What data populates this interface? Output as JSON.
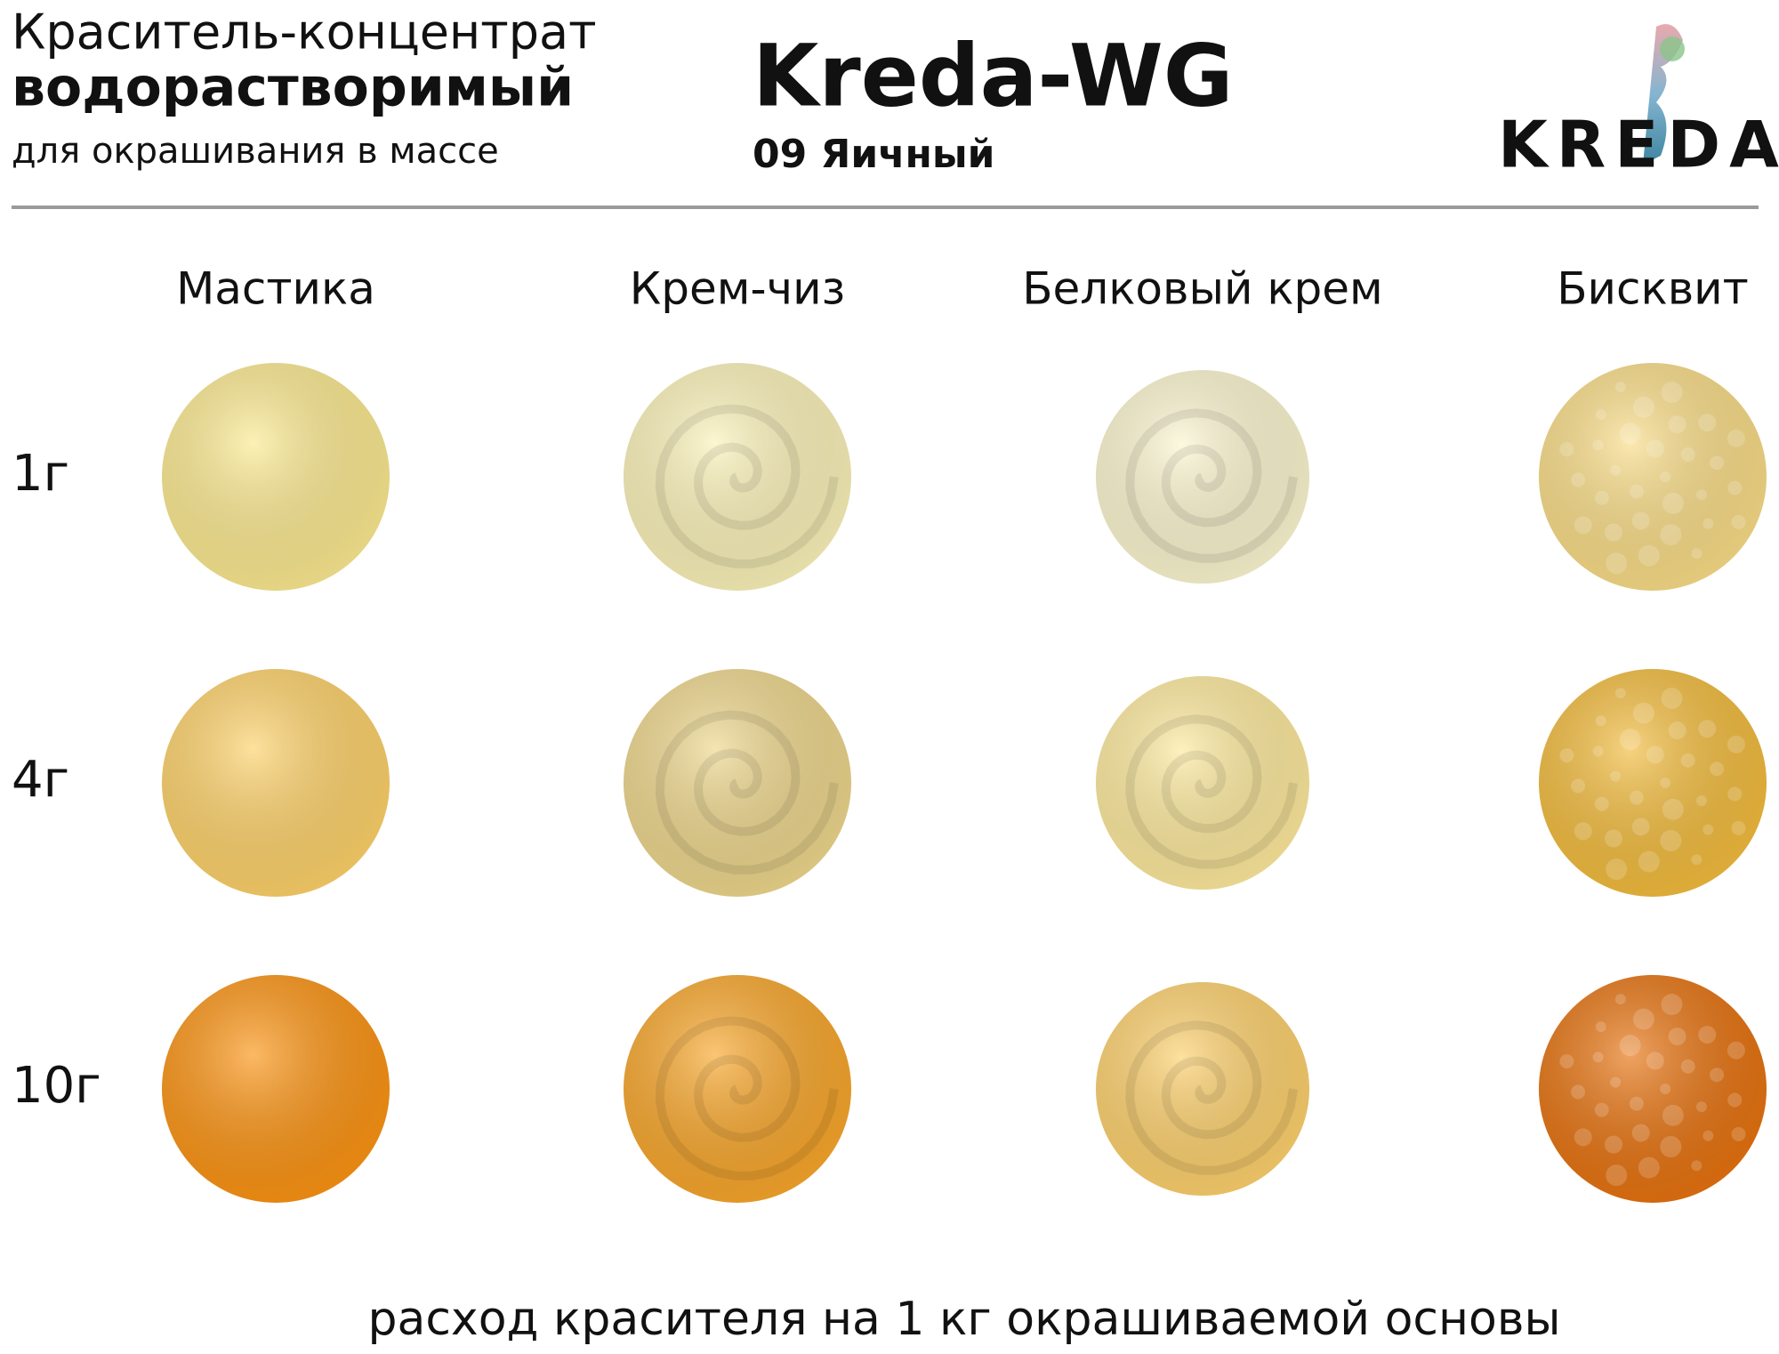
{
  "header": {
    "title_line1": "Краситель-концентрат",
    "title_line2": "водорастворимый",
    "subtitle": "для окрашивания в массе",
    "product": "Kreda-WG",
    "shade": "09 Яичный",
    "logo": "KREDA"
  },
  "columns": [
    "Мастика",
    "Крем-чиз",
    "Белковый крем",
    "Бисквит"
  ],
  "rows": [
    "1г",
    "4г",
    "10г"
  ],
  "footer": "расход красителя на 1 кг окрашиваемой основы"
}
